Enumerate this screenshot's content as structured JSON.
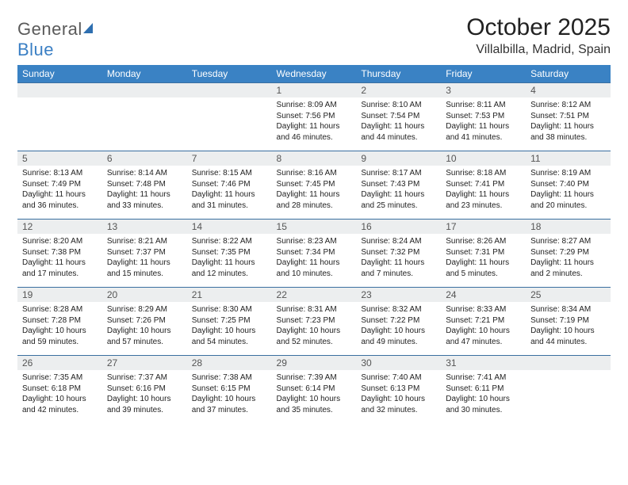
{
  "brand": {
    "name_gray": "General",
    "name_blue": "Blue",
    "sail_color": "#2e6fb0"
  },
  "header": {
    "month_title": "October 2025",
    "location": "Villalbilla, Madrid, Spain"
  },
  "colors": {
    "header_bg": "#3a82c4",
    "header_text": "#ffffff",
    "row_border": "#3a6fa0",
    "daynum_bg": "#eceeef",
    "daynum_text": "#555555",
    "body_text": "#222222",
    "page_bg": "#ffffff"
  },
  "weekdays": [
    "Sunday",
    "Monday",
    "Tuesday",
    "Wednesday",
    "Thursday",
    "Friday",
    "Saturday"
  ],
  "weeks": [
    [
      null,
      null,
      null,
      {
        "n": "1",
        "sr": "8:09 AM",
        "ss": "7:56 PM",
        "dl1": "Daylight: 11 hours",
        "dl2": "and 46 minutes."
      },
      {
        "n": "2",
        "sr": "8:10 AM",
        "ss": "7:54 PM",
        "dl1": "Daylight: 11 hours",
        "dl2": "and 44 minutes."
      },
      {
        "n": "3",
        "sr": "8:11 AM",
        "ss": "7:53 PM",
        "dl1": "Daylight: 11 hours",
        "dl2": "and 41 minutes."
      },
      {
        "n": "4",
        "sr": "8:12 AM",
        "ss": "7:51 PM",
        "dl1": "Daylight: 11 hours",
        "dl2": "and 38 minutes."
      }
    ],
    [
      {
        "n": "5",
        "sr": "8:13 AM",
        "ss": "7:49 PM",
        "dl1": "Daylight: 11 hours",
        "dl2": "and 36 minutes."
      },
      {
        "n": "6",
        "sr": "8:14 AM",
        "ss": "7:48 PM",
        "dl1": "Daylight: 11 hours",
        "dl2": "and 33 minutes."
      },
      {
        "n": "7",
        "sr": "8:15 AM",
        "ss": "7:46 PM",
        "dl1": "Daylight: 11 hours",
        "dl2": "and 31 minutes."
      },
      {
        "n": "8",
        "sr": "8:16 AM",
        "ss": "7:45 PM",
        "dl1": "Daylight: 11 hours",
        "dl2": "and 28 minutes."
      },
      {
        "n": "9",
        "sr": "8:17 AM",
        "ss": "7:43 PM",
        "dl1": "Daylight: 11 hours",
        "dl2": "and 25 minutes."
      },
      {
        "n": "10",
        "sr": "8:18 AM",
        "ss": "7:41 PM",
        "dl1": "Daylight: 11 hours",
        "dl2": "and 23 minutes."
      },
      {
        "n": "11",
        "sr": "8:19 AM",
        "ss": "7:40 PM",
        "dl1": "Daylight: 11 hours",
        "dl2": "and 20 minutes."
      }
    ],
    [
      {
        "n": "12",
        "sr": "8:20 AM",
        "ss": "7:38 PM",
        "dl1": "Daylight: 11 hours",
        "dl2": "and 17 minutes."
      },
      {
        "n": "13",
        "sr": "8:21 AM",
        "ss": "7:37 PM",
        "dl1": "Daylight: 11 hours",
        "dl2": "and 15 minutes."
      },
      {
        "n": "14",
        "sr": "8:22 AM",
        "ss": "7:35 PM",
        "dl1": "Daylight: 11 hours",
        "dl2": "and 12 minutes."
      },
      {
        "n": "15",
        "sr": "8:23 AM",
        "ss": "7:34 PM",
        "dl1": "Daylight: 11 hours",
        "dl2": "and 10 minutes."
      },
      {
        "n": "16",
        "sr": "8:24 AM",
        "ss": "7:32 PM",
        "dl1": "Daylight: 11 hours",
        "dl2": "and 7 minutes."
      },
      {
        "n": "17",
        "sr": "8:26 AM",
        "ss": "7:31 PM",
        "dl1": "Daylight: 11 hours",
        "dl2": "and 5 minutes."
      },
      {
        "n": "18",
        "sr": "8:27 AM",
        "ss": "7:29 PM",
        "dl1": "Daylight: 11 hours",
        "dl2": "and 2 minutes."
      }
    ],
    [
      {
        "n": "19",
        "sr": "8:28 AM",
        "ss": "7:28 PM",
        "dl1": "Daylight: 10 hours",
        "dl2": "and 59 minutes."
      },
      {
        "n": "20",
        "sr": "8:29 AM",
        "ss": "7:26 PM",
        "dl1": "Daylight: 10 hours",
        "dl2": "and 57 minutes."
      },
      {
        "n": "21",
        "sr": "8:30 AM",
        "ss": "7:25 PM",
        "dl1": "Daylight: 10 hours",
        "dl2": "and 54 minutes."
      },
      {
        "n": "22",
        "sr": "8:31 AM",
        "ss": "7:23 PM",
        "dl1": "Daylight: 10 hours",
        "dl2": "and 52 minutes."
      },
      {
        "n": "23",
        "sr": "8:32 AM",
        "ss": "7:22 PM",
        "dl1": "Daylight: 10 hours",
        "dl2": "and 49 minutes."
      },
      {
        "n": "24",
        "sr": "8:33 AM",
        "ss": "7:21 PM",
        "dl1": "Daylight: 10 hours",
        "dl2": "and 47 minutes."
      },
      {
        "n": "25",
        "sr": "8:34 AM",
        "ss": "7:19 PM",
        "dl1": "Daylight: 10 hours",
        "dl2": "and 44 minutes."
      }
    ],
    [
      {
        "n": "26",
        "sr": "7:35 AM",
        "ss": "6:18 PM",
        "dl1": "Daylight: 10 hours",
        "dl2": "and 42 minutes."
      },
      {
        "n": "27",
        "sr": "7:37 AM",
        "ss": "6:16 PM",
        "dl1": "Daylight: 10 hours",
        "dl2": "and 39 minutes."
      },
      {
        "n": "28",
        "sr": "7:38 AM",
        "ss": "6:15 PM",
        "dl1": "Daylight: 10 hours",
        "dl2": "and 37 minutes."
      },
      {
        "n": "29",
        "sr": "7:39 AM",
        "ss": "6:14 PM",
        "dl1": "Daylight: 10 hours",
        "dl2": "and 35 minutes."
      },
      {
        "n": "30",
        "sr": "7:40 AM",
        "ss": "6:13 PM",
        "dl1": "Daylight: 10 hours",
        "dl2": "and 32 minutes."
      },
      {
        "n": "31",
        "sr": "7:41 AM",
        "ss": "6:11 PM",
        "dl1": "Daylight: 10 hours",
        "dl2": "and 30 minutes."
      },
      null
    ]
  ],
  "labels": {
    "sunrise_prefix": "Sunrise: ",
    "sunset_prefix": "Sunset: "
  }
}
